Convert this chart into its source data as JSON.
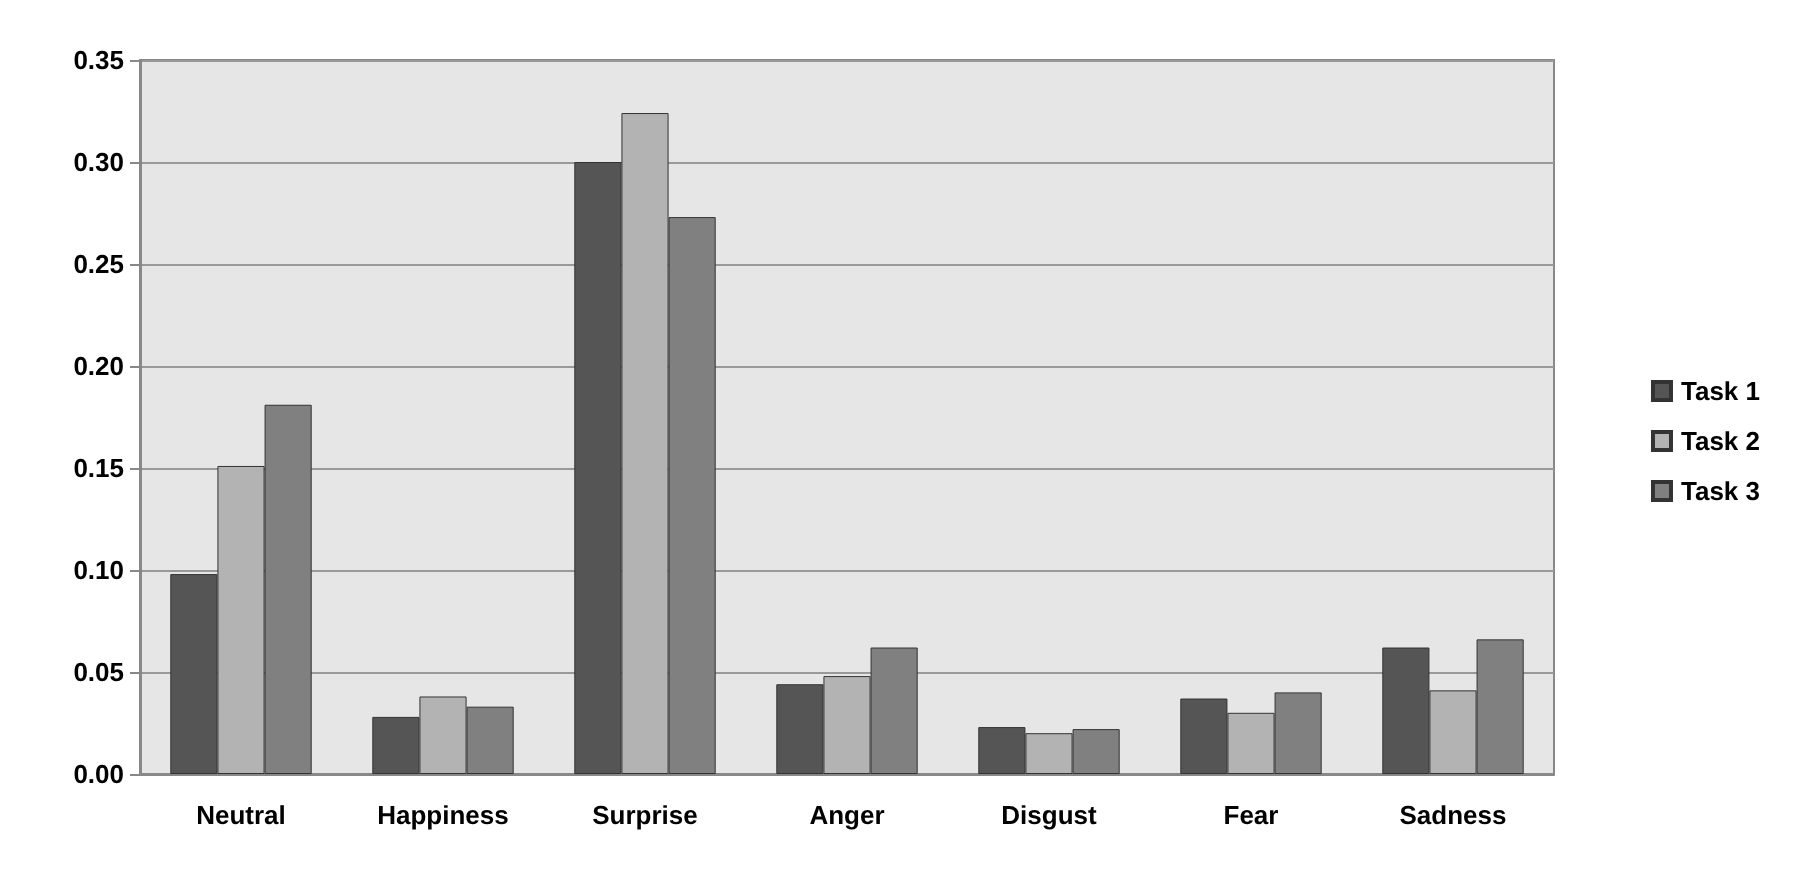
{
  "chart_data": {
    "type": "bar",
    "categories": [
      "Neutral",
      "Happiness",
      "Surprise",
      "Anger",
      "Disgust",
      "Fear",
      "Sadness"
    ],
    "series": [
      {
        "name": "Task 1",
        "color": "#555555",
        "values": [
          0.098,
          0.028,
          0.3,
          0.044,
          0.023,
          0.037,
          0.062
        ]
      },
      {
        "name": "Task 2",
        "color": "#b3b3b3",
        "values": [
          0.151,
          0.038,
          0.324,
          0.048,
          0.02,
          0.03,
          0.041
        ]
      },
      {
        "name": "Task 3",
        "color": "#808080",
        "values": [
          0.181,
          0.033,
          0.273,
          0.062,
          0.022,
          0.04,
          0.066
        ]
      }
    ],
    "ylim": [
      0,
      0.35
    ],
    "yticks": [
      {
        "value": 0,
        "label": "0.00"
      },
      {
        "value": 0.05,
        "label": "0.05"
      },
      {
        "value": 0.1,
        "label": "0.10"
      },
      {
        "value": 0.15,
        "label": "0.15"
      },
      {
        "value": 0.2,
        "label": "0.20"
      },
      {
        "value": 0.25,
        "label": "0.25"
      },
      {
        "value": 0.3,
        "label": "0.30"
      },
      {
        "value": 0.35,
        "label": "0.35"
      }
    ],
    "grid": "y",
    "legend": "right"
  }
}
